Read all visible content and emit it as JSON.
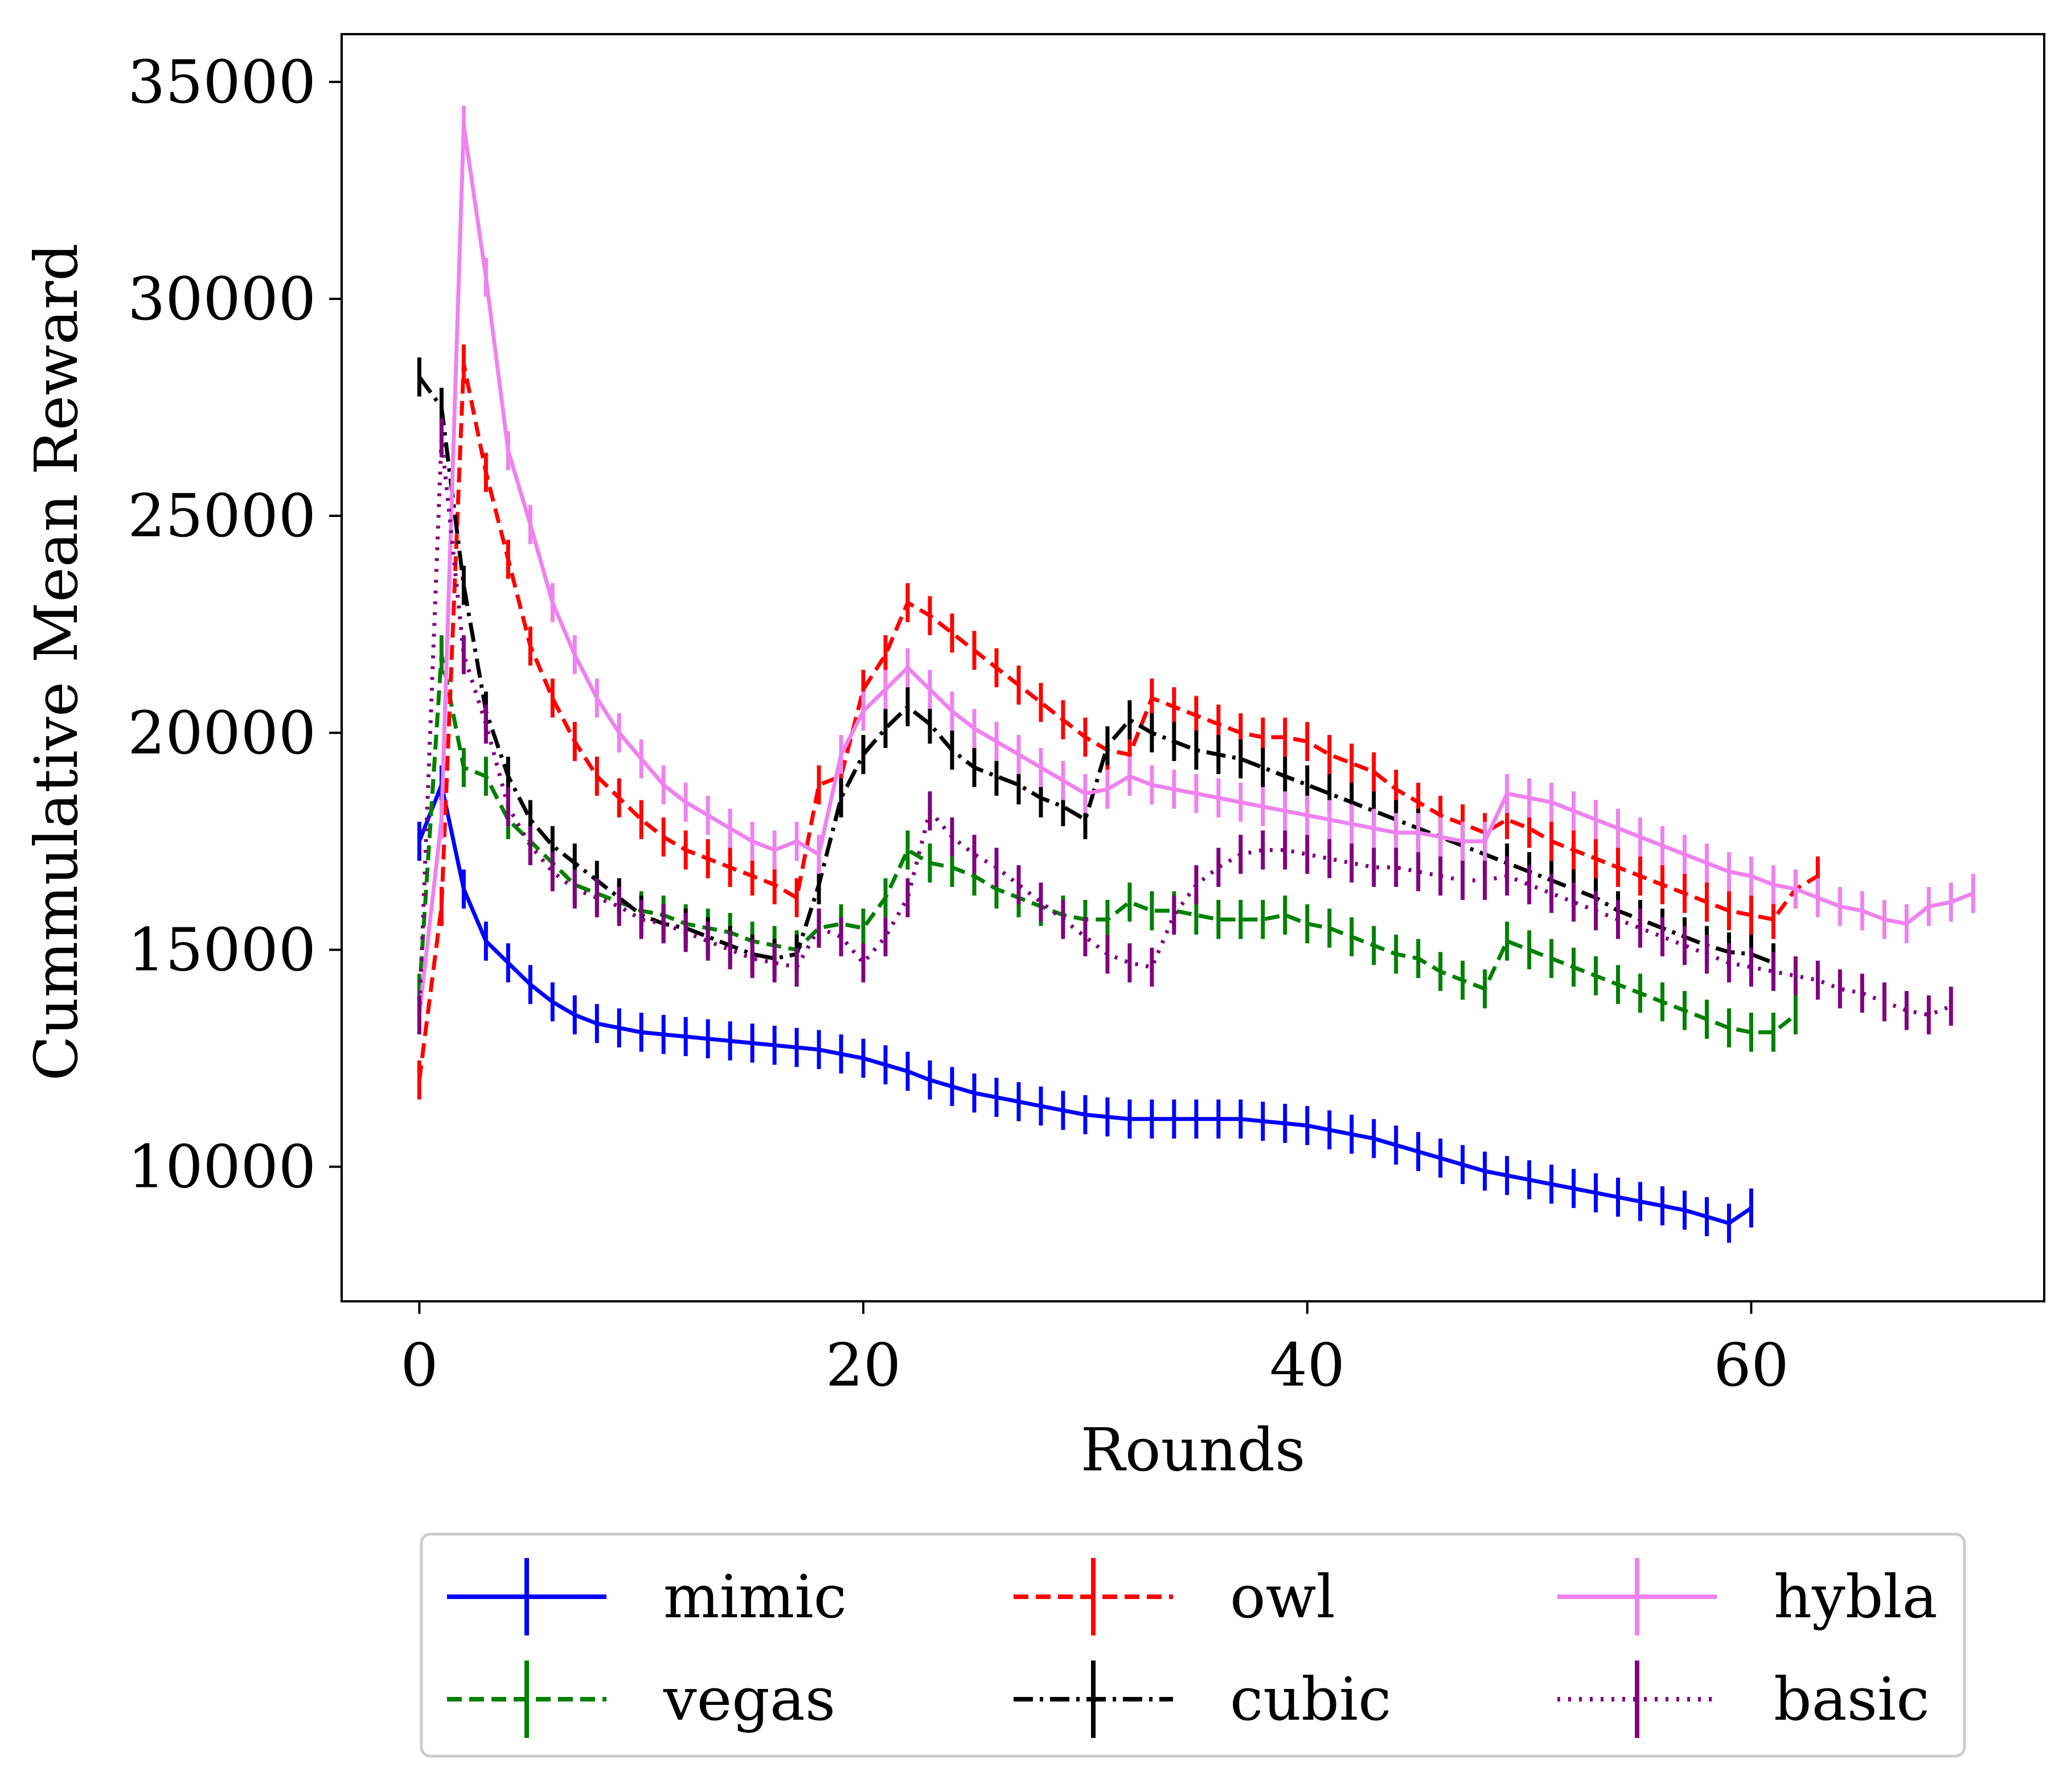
{
  "chart_data": {
    "type": "line",
    "xlabel": "Rounds",
    "ylabel": "Cummulative Mean Reward",
    "xlim": [
      -3.5,
      73.2
    ],
    "ylim": [
      6900,
      36100
    ],
    "xticks": [
      0,
      20,
      40,
      60
    ],
    "yticks": [
      10000,
      15000,
      20000,
      25000,
      30000,
      35000
    ],
    "grid": false,
    "legend": {
      "placement": "below plot",
      "columns": 3
    },
    "error_bar_half_height": 450,
    "series": [
      {
        "name": "mimic",
        "color": "#0000ff",
        "dash": "solid",
        "x": [
          0,
          1,
          2,
          3,
          4,
          5,
          6,
          7,
          8,
          9,
          10,
          11,
          12,
          13,
          14,
          15,
          16,
          17,
          18,
          19,
          20,
          21,
          22,
          23,
          24,
          25,
          26,
          27,
          28,
          29,
          30,
          31,
          32,
          33,
          34,
          35,
          36,
          37,
          38,
          39,
          40,
          41,
          42,
          43,
          44,
          45,
          46,
          47,
          48,
          49,
          50,
          51,
          52,
          53,
          54,
          55,
          56,
          57,
          58,
          59,
          60
        ],
        "y": [
          17500,
          18800,
          16400,
          15200,
          14700,
          14200,
          13800,
          13500,
          13300,
          13200,
          13100,
          13050,
          13000,
          12950,
          12900,
          12850,
          12800,
          12750,
          12700,
          12600,
          12500,
          12350,
          12200,
          12000,
          11850,
          11700,
          11600,
          11500,
          11400,
          11300,
          11200,
          11150,
          11100,
          11100,
          11100,
          11100,
          11100,
          11100,
          11050,
          11000,
          10950,
          10850,
          10750,
          10650,
          10500,
          10350,
          10200,
          10050,
          9900,
          9800,
          9700,
          9600,
          9500,
          9400,
          9300,
          9200,
          9100,
          9000,
          8850,
          8700,
          9050
        ]
      },
      {
        "name": "vegas",
        "color": "#008000",
        "dash": "dashed",
        "x": [
          0,
          1,
          2,
          3,
          4,
          5,
          6,
          7,
          8,
          9,
          10,
          11,
          12,
          13,
          14,
          15,
          16,
          17,
          18,
          19,
          20,
          21,
          22,
          23,
          24,
          25,
          26,
          27,
          28,
          29,
          30,
          31,
          32,
          33,
          34,
          35,
          36,
          37,
          38,
          39,
          40,
          41,
          42,
          43,
          44,
          45,
          46,
          47,
          48,
          49,
          50,
          51,
          52,
          53,
          54,
          55,
          56,
          57,
          58,
          59,
          60,
          61,
          62
        ],
        "y": [
          14000,
          21800,
          19200,
          19000,
          18000,
          17500,
          17000,
          16500,
          16300,
          16100,
          15900,
          15800,
          15600,
          15500,
          15400,
          15200,
          15100,
          15000,
          15500,
          15600,
          15500,
          16200,
          17300,
          17000,
          16900,
          16700,
          16400,
          16200,
          16000,
          15800,
          15700,
          15700,
          16100,
          15900,
          15900,
          15800,
          15700,
          15700,
          15700,
          15800,
          15600,
          15500,
          15300,
          15100,
          14900,
          14800,
          14500,
          14300,
          14100,
          15200,
          15000,
          14800,
          14600,
          14400,
          14200,
          14000,
          13800,
          13600,
          13400,
          13200,
          13100,
          13100,
          13500
        ]
      },
      {
        "name": "owl",
        "color": "#ff0000",
        "dash": "dashed",
        "x": [
          0,
          1,
          2,
          3,
          4,
          5,
          6,
          7,
          8,
          9,
          10,
          11,
          12,
          13,
          14,
          15,
          16,
          17,
          18,
          19,
          20,
          21,
          22,
          23,
          24,
          25,
          26,
          27,
          28,
          29,
          30,
          31,
          32,
          33,
          34,
          35,
          36,
          37,
          38,
          39,
          40,
          41,
          42,
          43,
          44,
          45,
          46,
          47,
          48,
          49,
          50,
          51,
          52,
          53,
          54,
          55,
          56,
          57,
          58,
          59,
          60,
          61,
          62,
          63
        ],
        "y": [
          12000,
          16000,
          28500,
          26000,
          24000,
          22000,
          20800,
          19800,
          19000,
          18500,
          18000,
          17600,
          17300,
          17100,
          16900,
          16700,
          16500,
          16200,
          18800,
          19000,
          21000,
          21800,
          23000,
          22700,
          22300,
          21900,
          21500,
          21100,
          20700,
          20300,
          19900,
          19600,
          19500,
          20800,
          20600,
          20400,
          20200,
          20000,
          19900,
          19900,
          19800,
          19500,
          19300,
          19100,
          18700,
          18400,
          18100,
          17900,
          17700,
          18000,
          17800,
          17500,
          17300,
          17100,
          16900,
          16700,
          16500,
          16300,
          16100,
          15900,
          15800,
          15700,
          16400,
          16700
        ]
      },
      {
        "name": "cubic",
        "color": "#000000",
        "dash": "dashdot",
        "x": [
          0,
          1,
          2,
          3,
          4,
          5,
          6,
          7,
          8,
          9,
          10,
          11,
          12,
          13,
          14,
          15,
          16,
          17,
          18,
          19,
          20,
          21,
          22,
          23,
          24,
          25,
          26,
          27,
          28,
          29,
          30,
          31,
          32,
          33,
          34,
          35,
          36,
          37,
          38,
          39,
          40,
          41,
          42,
          43,
          44,
          45,
          46,
          47,
          48,
          49,
          50,
          51,
          52,
          53,
          54,
          55,
          56,
          57,
          58,
          59,
          60,
          61
        ],
        "y": [
          28200,
          27500,
          23400,
          20500,
          19000,
          18000,
          17400,
          17000,
          16600,
          16200,
          15800,
          15600,
          15500,
          15300,
          15100,
          14900,
          14800,
          14900,
          16500,
          18500,
          19500,
          20100,
          20600,
          20200,
          19600,
          19200,
          19000,
          18800,
          18500,
          18300,
          18000,
          19700,
          20300,
          20000,
          19800,
          19600,
          19500,
          19400,
          19200,
          19000,
          18800,
          18600,
          18400,
          18200,
          18000,
          17800,
          17600,
          17400,
          17200,
          17000,
          16800,
          16600,
          16400,
          16200,
          15900,
          15700,
          15500,
          15300,
          15100,
          14950,
          14900,
          14700
        ]
      },
      {
        "name": "hybla",
        "color": "#ee82ee",
        "dash": "solid",
        "x": [
          0,
          1,
          2,
          3,
          4,
          5,
          6,
          7,
          8,
          9,
          10,
          11,
          12,
          13,
          14,
          15,
          16,
          17,
          18,
          19,
          20,
          21,
          22,
          23,
          24,
          25,
          26,
          27,
          28,
          29,
          30,
          31,
          32,
          33,
          34,
          35,
          36,
          37,
          38,
          39,
          40,
          41,
          42,
          43,
          44,
          45,
          46,
          47,
          48,
          49,
          50,
          51,
          52,
          53,
          54,
          55,
          56,
          57,
          58,
          59,
          60,
          61,
          62,
          63,
          64,
          65,
          66,
          67,
          68,
          69,
          70
        ],
        "y": [
          13500,
          18000,
          34000,
          30500,
          26500,
          24800,
          23000,
          21800,
          20800,
          20000,
          19400,
          18800,
          18400,
          18100,
          17800,
          17500,
          17300,
          17500,
          17200,
          19500,
          20500,
          21000,
          21500,
          21000,
          20500,
          20100,
          19800,
          19500,
          19200,
          18900,
          18600,
          18700,
          19000,
          18800,
          18700,
          18600,
          18500,
          18400,
          18300,
          18200,
          18100,
          18000,
          17900,
          17800,
          17700,
          17700,
          17600,
          17500,
          17500,
          18600,
          18500,
          18400,
          18200,
          18000,
          17800,
          17600,
          17400,
          17200,
          17000,
          16800,
          16700,
          16500,
          16400,
          16200,
          16000,
          15900,
          15700,
          15600,
          16000,
          16100,
          16300
        ]
      },
      {
        "name": "basic",
        "color": "#800080",
        "dash": "dotted",
        "x": [
          0,
          1,
          2,
          3,
          4,
          5,
          6,
          7,
          8,
          9,
          10,
          11,
          12,
          13,
          14,
          15,
          16,
          17,
          18,
          19,
          20,
          21,
          22,
          23,
          24,
          25,
          26,
          27,
          28,
          29,
          30,
          31,
          32,
          33,
          34,
          35,
          36,
          37,
          38,
          39,
          40,
          41,
          42,
          43,
          44,
          45,
          46,
          47,
          48,
          49,
          50,
          51,
          52,
          53,
          54,
          55,
          56,
          57,
          58,
          59,
          60,
          61,
          62,
          63,
          64,
          65,
          66,
          67,
          68,
          69
        ],
        "y": [
          13500,
          26800,
          21800,
          20200,
          18300,
          17400,
          16800,
          16400,
          16200,
          16000,
          15700,
          15600,
          15400,
          15200,
          15000,
          14800,
          14700,
          14600,
          15500,
          15300,
          14700,
          15300,
          16200,
          18200,
          17600,
          17200,
          16900,
          16500,
          16100,
          15700,
          15300,
          14900,
          14700,
          14600,
          15800,
          16500,
          16900,
          17200,
          17300,
          17300,
          17200,
          17100,
          17000,
          16900,
          16900,
          16800,
          16700,
          16600,
          16600,
          16700,
          16500,
          16300,
          16100,
          15900,
          15700,
          15500,
          15300,
          15100,
          14900,
          14700,
          14600,
          14500,
          14400,
          14300,
          14100,
          14000,
          13800,
          13600,
          13500,
          13700
        ]
      }
    ]
  }
}
